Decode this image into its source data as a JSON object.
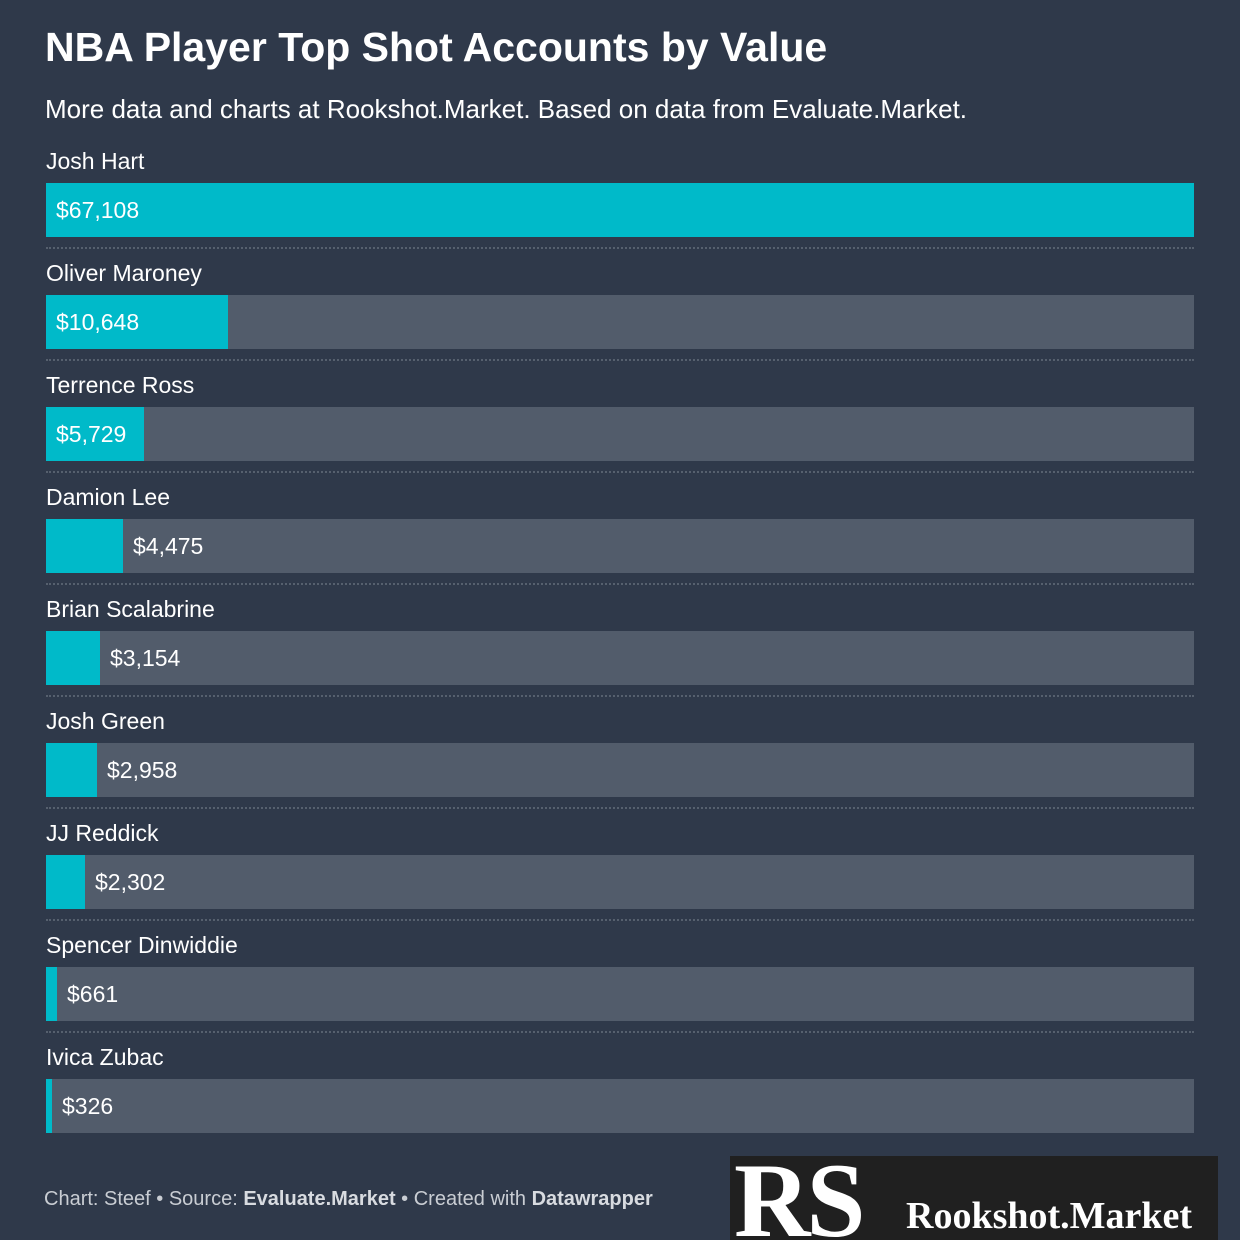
{
  "header": {
    "title": "NBA Player Top Shot Accounts by Value",
    "subtitle": "More data and charts at Rookshot.Market. Based on data from Evaluate.Market."
  },
  "chart_data": {
    "type": "bar",
    "title": "NBA Player Top Shot Accounts by Value",
    "subtitle": "More data and charts at Rookshot.Market. Based on data from Evaluate.Market.",
    "categories": [
      "Josh Hart",
      "Oliver Maroney",
      "Terrence Ross",
      "Damion Lee",
      "Brian Scalabrine",
      "Josh Green",
      "JJ Reddick",
      "Spencer Dinwiddie",
      "Ivica Zubac"
    ],
    "values": [
      67108,
      10648,
      5729,
      4475,
      3154,
      2958,
      2302,
      661,
      326
    ],
    "value_labels": [
      "$67,108",
      "$10,648",
      "$5,729",
      "$4,475",
      "$3,154",
      "$2,958",
      "$2,302",
      "$661",
      "$326"
    ],
    "xlim": [
      0,
      67108
    ],
    "orientation": "horizontal",
    "grid": false,
    "legend": "none"
  },
  "footer": {
    "chart_prefix": "Chart: Steef • Source: ",
    "source": "Evaluate.Market",
    "created_prefix": " • Created with ",
    "created_with": "Datawrapper"
  },
  "logo": {
    "monogram": "RS",
    "name": "Rookshot.Market"
  },
  "colors": {
    "background": "#2f394a",
    "bar": "#00bac9",
    "track": "#525c6b",
    "text": "#ffffff"
  }
}
